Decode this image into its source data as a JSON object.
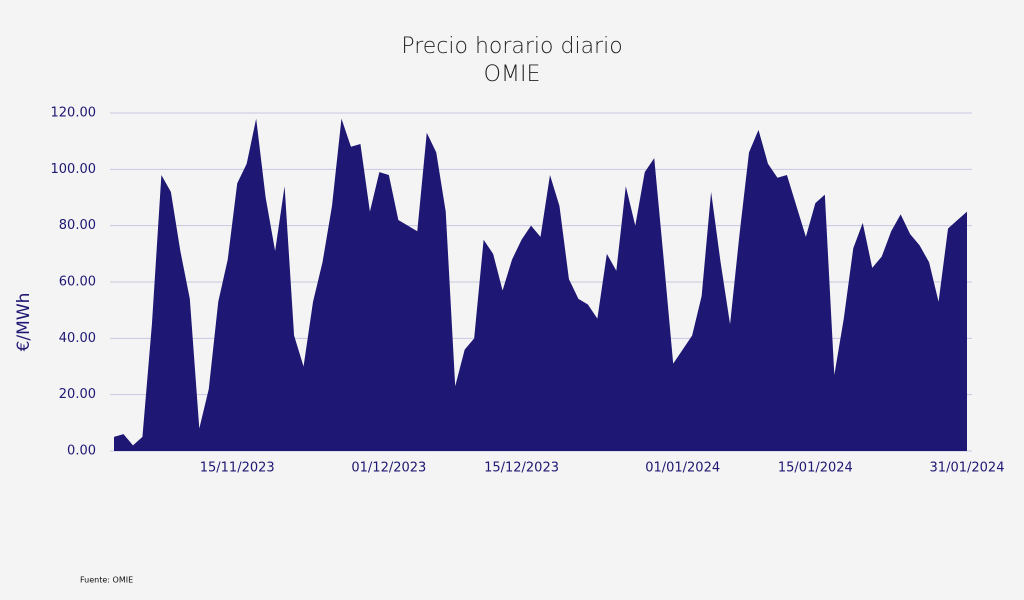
{
  "chart_data": {
    "type": "area",
    "title": "Precio horario diario",
    "subtitle": "OMIE",
    "ylabel": "€/MWh",
    "source": "Fuente: OMIE",
    "color": "#1e1773",
    "grid": true,
    "x": [
      "02/11/2023",
      "03/11/2023",
      "04/11/2023",
      "05/11/2023",
      "06/11/2023",
      "07/11/2023",
      "08/11/2023",
      "09/11/2023",
      "10/11/2023",
      "11/11/2023",
      "12/11/2023",
      "13/11/2023",
      "14/11/2023",
      "15/11/2023",
      "16/11/2023",
      "17/11/2023",
      "18/11/2023",
      "19/11/2023",
      "20/11/2023",
      "21/11/2023",
      "22/11/2023",
      "23/11/2023",
      "24/11/2023",
      "25/11/2023",
      "26/11/2023",
      "27/11/2023",
      "28/11/2023",
      "29/11/2023",
      "30/11/2023",
      "01/12/2023",
      "02/12/2023",
      "03/12/2023",
      "04/12/2023",
      "05/12/2023",
      "06/12/2023",
      "07/12/2023",
      "08/12/2023",
      "09/12/2023",
      "10/12/2023",
      "11/12/2023",
      "12/12/2023",
      "13/12/2023",
      "14/12/2023",
      "15/12/2023",
      "16/12/2023",
      "17/12/2023",
      "18/12/2023",
      "19/12/2023",
      "20/12/2023",
      "21/12/2023",
      "22/12/2023",
      "23/12/2023",
      "24/12/2023",
      "25/12/2023",
      "26/12/2023",
      "27/12/2023",
      "28/12/2023",
      "29/12/2023",
      "30/12/2023",
      "31/12/2023",
      "01/01/2024",
      "02/01/2024",
      "03/01/2024",
      "04/01/2024",
      "05/01/2024",
      "06/01/2024",
      "07/01/2024",
      "08/01/2024",
      "09/01/2024",
      "10/01/2024",
      "11/01/2024",
      "12/01/2024",
      "13/01/2024",
      "14/01/2024",
      "15/01/2024",
      "16/01/2024",
      "17/01/2024",
      "18/01/2024",
      "19/01/2024",
      "20/01/2024",
      "21/01/2024",
      "22/01/2024",
      "23/01/2024",
      "24/01/2024",
      "25/01/2024",
      "26/01/2024",
      "27/01/2024",
      "28/01/2024",
      "29/01/2024",
      "30/01/2024",
      "31/01/2024"
    ],
    "values": [
      5,
      6,
      2,
      5,
      45,
      98,
      92,
      71,
      54,
      8,
      22,
      53,
      68,
      95,
      102,
      118,
      90,
      71,
      94,
      41,
      30,
      53,
      67,
      87,
      118,
      108,
      109,
      85,
      99,
      98,
      82,
      80,
      78,
      113,
      106,
      85,
      23,
      36,
      40,
      75,
      70,
      57,
      68,
      75,
      80,
      76,
      98,
      87,
      61,
      54,
      52,
      47,
      70,
      64,
      94,
      80,
      99,
      104,
      68,
      31,
      36,
      41,
      55,
      92,
      67,
      45,
      77,
      106,
      114,
      102,
      97,
      98,
      87,
      76,
      88,
      91,
      27,
      47,
      72,
      81,
      65,
      69,
      78,
      84,
      77,
      73,
      67,
      53,
      79,
      82,
      85
    ],
    "xticks": [
      "15/11/2023",
      "01/12/2023",
      "15/12/2023",
      "01/01/2024",
      "15/01/2024",
      "31/01/2024"
    ],
    "ylim": [
      0,
      120
    ],
    "yticks": [
      {
        "value": 0,
        "label": "0.00"
      },
      {
        "value": 20,
        "label": "20.00"
      },
      {
        "value": 40,
        "label": "40.00"
      },
      {
        "value": 60,
        "label": "60.00"
      },
      {
        "value": 80,
        "label": "80.00"
      },
      {
        "value": 100,
        "label": "100.00"
      },
      {
        "value": 120,
        "label": "120.00"
      }
    ]
  }
}
